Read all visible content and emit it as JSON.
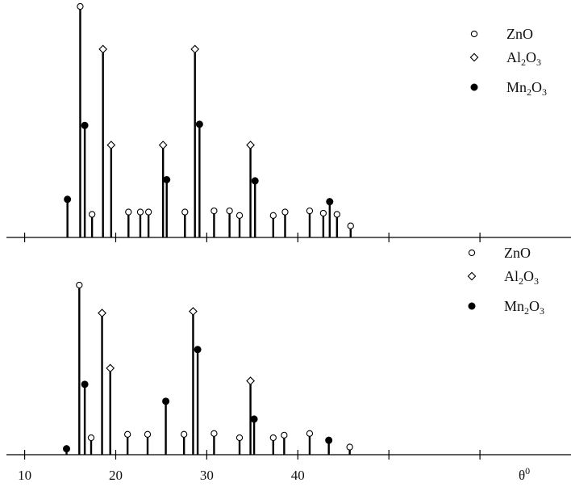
{
  "chart_data": {
    "type": "stem",
    "xlabel": "θ",
    "xlabel_sup": "0",
    "xlim": [
      8,
      70
    ],
    "x_ticks": [
      10,
      20,
      30,
      40
    ],
    "grid": false,
    "legend": [
      {
        "label": "ZnO",
        "marker": "open-circle"
      },
      {
        "label": "Al",
        "sub1": "2",
        "mid": "O",
        "sub2": "3",
        "marker": "open-diamond"
      },
      {
        "label": "Mn",
        "sub1": "2",
        "mid": "O",
        "sub2": "3",
        "marker": "filled-circle"
      }
    ],
    "panels": [
      {
        "name": "top",
        "peaks": [
          {
            "x": 14.7,
            "y": 0.165,
            "m": "Mn2O3"
          },
          {
            "x": 16.1,
            "y": 1.0,
            "m": "ZnO"
          },
          {
            "x": 16.6,
            "y": 0.485,
            "m": "Mn2O3"
          },
          {
            "x": 17.4,
            "y": 0.1,
            "m": "ZnO"
          },
          {
            "x": 18.6,
            "y": 0.815,
            "m": "Al2O3"
          },
          {
            "x": 19.5,
            "y": 0.4,
            "m": "Al2O3"
          },
          {
            "x": 21.4,
            "y": 0.11,
            "m": "ZnO"
          },
          {
            "x": 22.7,
            "y": 0.11,
            "m": "ZnO"
          },
          {
            "x": 23.6,
            "y": 0.11,
            "m": "ZnO"
          },
          {
            "x": 25.2,
            "y": 0.4,
            "m": "Al2O3"
          },
          {
            "x": 25.6,
            "y": 0.25,
            "m": "Mn2O3"
          },
          {
            "x": 27.6,
            "y": 0.11,
            "m": "ZnO"
          },
          {
            "x": 28.7,
            "y": 0.815,
            "m": "Al2O3"
          },
          {
            "x": 29.2,
            "y": 0.49,
            "m": "Mn2O3"
          },
          {
            "x": 30.8,
            "y": 0.115,
            "m": "ZnO"
          },
          {
            "x": 32.5,
            "y": 0.115,
            "m": "ZnO"
          },
          {
            "x": 33.6,
            "y": 0.095,
            "m": "ZnO"
          },
          {
            "x": 34.8,
            "y": 0.4,
            "m": "Al2O3"
          },
          {
            "x": 35.3,
            "y": 0.245,
            "m": "Mn2O3"
          },
          {
            "x": 37.3,
            "y": 0.095,
            "m": "ZnO"
          },
          {
            "x": 38.6,
            "y": 0.11,
            "m": "ZnO"
          },
          {
            "x": 41.3,
            "y": 0.115,
            "m": "ZnO"
          },
          {
            "x": 42.8,
            "y": 0.105,
            "m": "ZnO"
          },
          {
            "x": 43.5,
            "y": 0.155,
            "m": "Mn2O3"
          },
          {
            "x": 44.3,
            "y": 0.1,
            "m": "ZnO"
          },
          {
            "x": 45.8,
            "y": 0.05,
            "m": "ZnO"
          }
        ]
      },
      {
        "name": "bottom",
        "peaks": [
          {
            "x": 14.6,
            "y": 0.035,
            "m": "Mn2O3"
          },
          {
            "x": 16.0,
            "y": 1.0,
            "m": "ZnO"
          },
          {
            "x": 16.6,
            "y": 0.415,
            "m": "Mn2O3"
          },
          {
            "x": 17.3,
            "y": 0.1,
            "m": "ZnO"
          },
          {
            "x": 18.5,
            "y": 0.835,
            "m": "Al2O3"
          },
          {
            "x": 19.4,
            "y": 0.51,
            "m": "Al2O3"
          },
          {
            "x": 21.3,
            "y": 0.12,
            "m": "ZnO"
          },
          {
            "x": 23.5,
            "y": 0.12,
            "m": "ZnO"
          },
          {
            "x": 25.5,
            "y": 0.315,
            "m": "Mn2O3"
          },
          {
            "x": 27.5,
            "y": 0.12,
            "m": "ZnO"
          },
          {
            "x": 28.5,
            "y": 0.845,
            "m": "Al2O3"
          },
          {
            "x": 29.0,
            "y": 0.62,
            "m": "Mn2O3"
          },
          {
            "x": 30.8,
            "y": 0.125,
            "m": "ZnO"
          },
          {
            "x": 33.6,
            "y": 0.1,
            "m": "ZnO"
          },
          {
            "x": 34.8,
            "y": 0.435,
            "m": "Al2O3"
          },
          {
            "x": 35.2,
            "y": 0.21,
            "m": "Mn2O3"
          },
          {
            "x": 37.3,
            "y": 0.1,
            "m": "ZnO"
          },
          {
            "x": 38.5,
            "y": 0.115,
            "m": "ZnO"
          },
          {
            "x": 41.3,
            "y": 0.125,
            "m": "ZnO"
          },
          {
            "x": 43.4,
            "y": 0.085,
            "m": "Mn2O3"
          },
          {
            "x": 45.7,
            "y": 0.045,
            "m": "ZnO"
          }
        ]
      }
    ]
  }
}
